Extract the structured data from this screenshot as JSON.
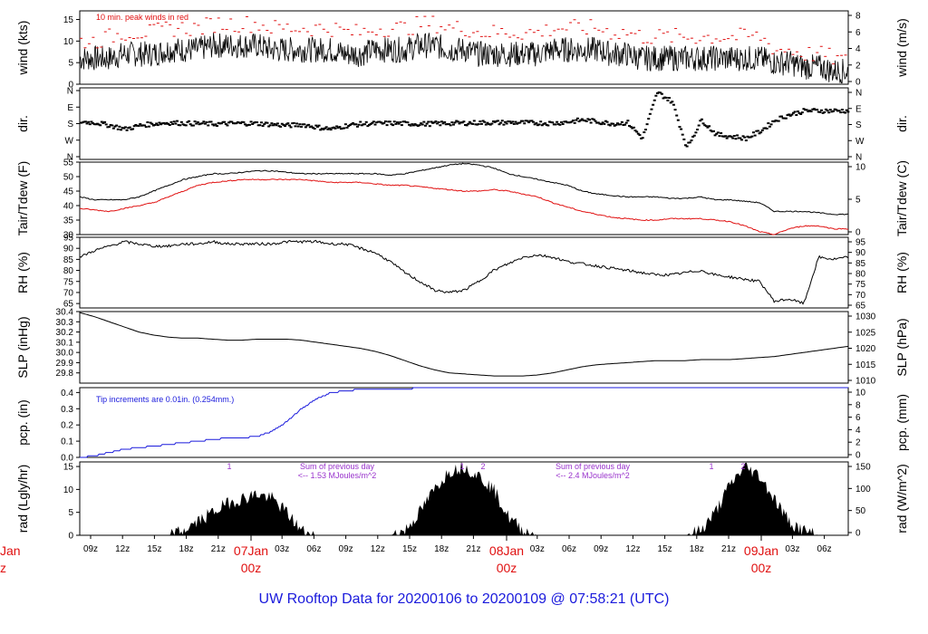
{
  "figure_title": "UW Rooftop Data for 20200106  to  20200109 @ 07:58:21  (UTC)",
  "x_axis": {
    "ticks": [
      "09z",
      "12z",
      "15z",
      "18z",
      "21z",
      "03z",
      "06z",
      "09z",
      "12z",
      "15z",
      "18z",
      "21z",
      "03z",
      "06z",
      "09z",
      "12z",
      "15z",
      "18z",
      "21z",
      "03z",
      "06z"
    ],
    "day_labels": [
      {
        "date": "07Jan",
        "hour": "00z"
      },
      {
        "date": "08Jan",
        "hour": "00z"
      },
      {
        "date": "09Jan",
        "hour": "00z"
      }
    ],
    "clipped_left_label": {
      "date": "Jan",
      "hour": "z"
    }
  },
  "colors": {
    "black": "#000000",
    "red": "#e01010",
    "blue": "#1a1adc",
    "purple": "#9933cc",
    "axis": "#000000"
  },
  "chart_data": [
    {
      "type": "line",
      "id": "wind",
      "ylabel": "wind (kts)",
      "ylabel_right": "wind (m/s)",
      "ylim": [
        0,
        17
      ],
      "yticks": [
        "0",
        "5",
        "10",
        "15"
      ],
      "yticks_right": [
        "0",
        "2",
        "4",
        "6",
        "8"
      ],
      "annotation": "10 min. peak winds in red",
      "series": [
        {
          "name": "wind speed",
          "color": "#000000",
          "values": [
            6,
            6,
            6,
            7,
            7,
            7,
            8,
            8,
            8,
            9,
            9,
            9,
            9,
            8,
            8,
            8,
            8,
            8,
            7,
            7,
            8,
            8,
            8,
            9,
            9,
            8,
            8,
            7,
            7,
            7,
            7,
            7,
            8,
            8,
            8,
            8,
            7,
            7,
            6,
            6,
            6,
            6,
            6,
            6,
            6,
            6,
            6,
            5,
            5,
            4,
            4,
            3,
            3
          ]
        },
        {
          "name": "10 min peak",
          "color": "#e01010",
          "values": [
            10,
            10,
            11,
            12,
            12,
            12,
            13,
            13,
            13,
            14,
            14,
            14,
            14,
            13,
            13,
            13,
            13,
            13,
            12,
            12,
            13,
            13,
            13,
            14,
            14,
            13,
            13,
            12,
            12,
            12,
            12,
            12,
            13,
            13,
            13,
            13,
            12,
            12,
            11,
            11,
            11,
            11,
            11,
            11,
            11,
            11,
            11,
            8,
            8,
            7,
            7,
            6,
            5
          ]
        }
      ]
    },
    {
      "type": "scatter",
      "id": "dir",
      "ylabel": "dir.",
      "ylabel_right": "dir.",
      "yticks": [
        "N",
        "W",
        "S",
        "E",
        "N"
      ],
      "series": [
        {
          "name": "direction (deg)",
          "color": "#000000",
          "values": [
            190,
            185,
            170,
            150,
            170,
            180,
            185,
            182,
            180,
            178,
            180,
            182,
            180,
            175,
            170,
            175,
            160,
            150,
            170,
            178,
            180,
            182,
            180,
            178,
            180,
            182,
            183,
            185,
            185,
            186,
            185,
            183,
            182,
            190,
            200,
            190,
            180,
            185,
            100,
            350,
            300,
            50,
            200,
            120,
            110,
            100,
            140,
            200,
            230,
            250,
            250,
            250,
            250
          ]
        }
      ]
    },
    {
      "type": "line",
      "id": "temp",
      "ylabel": "Tair/Tdew (F)",
      "ylabel_right": "Tair/Tdew (C)",
      "ylim": [
        30,
        55
      ],
      "yticks": [
        "30",
        "35",
        "40",
        "45",
        "50",
        "55"
      ],
      "yticks_right": [
        "0",
        "5",
        "10"
      ],
      "series": [
        {
          "name": "Tair",
          "color": "#000000",
          "values": [
            43,
            42,
            42,
            42,
            43,
            45,
            47,
            49,
            50,
            51,
            51,
            51.5,
            52,
            52,
            51.5,
            51,
            51,
            51,
            51,
            51,
            51,
            50.5,
            51,
            52,
            53,
            54,
            54.5,
            54,
            53,
            51,
            50,
            49,
            48,
            47,
            45,
            44,
            43.5,
            43,
            43,
            43,
            42.5,
            42.5,
            43,
            42,
            42,
            41.5,
            41,
            38,
            38,
            38,
            37.5,
            37,
            37
          ]
        },
        {
          "name": "Tdew",
          "color": "#e01010",
          "values": [
            39,
            38.5,
            38,
            39,
            40,
            41,
            43,
            45,
            47,
            48,
            48.5,
            49,
            49,
            49,
            49,
            49,
            48.5,
            48,
            48,
            48,
            47.5,
            47,
            47,
            46.5,
            46,
            45.5,
            45,
            45,
            45.5,
            45,
            44,
            43,
            41,
            39.5,
            38,
            37,
            36,
            35.5,
            35,
            35,
            35.5,
            35.5,
            35.5,
            35,
            34.5,
            33,
            31,
            30,
            32,
            33,
            33,
            32,
            32
          ]
        }
      ]
    },
    {
      "type": "line",
      "id": "rh",
      "ylabel": "RH (%)",
      "ylabel_right": "RH (%)",
      "ylim": [
        63,
        95
      ],
      "yticks": [
        "65",
        "70",
        "75",
        "80",
        "85",
        "90",
        "95"
      ],
      "series": [
        {
          "name": "RH",
          "color": "#000000",
          "values": [
            86,
            89,
            91,
            93,
            92,
            91,
            91,
            92,
            92,
            93,
            92,
            92,
            92,
            92,
            93,
            93,
            93,
            92,
            92,
            90,
            88,
            84,
            79,
            75,
            71,
            70,
            71,
            75,
            80,
            83,
            86,
            87,
            86,
            84,
            83,
            82,
            81,
            80,
            79,
            78,
            78,
            79,
            80,
            78,
            77,
            76,
            75,
            66,
            67,
            65,
            86,
            85,
            86
          ]
        }
      ]
    },
    {
      "type": "line",
      "id": "slp",
      "ylabel": "SLP (inHg)",
      "ylabel_right": "SLP (hPa)",
      "ylim": [
        29.7,
        30.4
      ],
      "yticks": [
        "29.8",
        "29.9",
        "30.0",
        "30.1",
        "30.2",
        "30.3",
        "30.4"
      ],
      "yticks_right": [
        "1010",
        "1015",
        "1020",
        "1025",
        "1030"
      ],
      "series": [
        {
          "name": "SLP",
          "color": "#000000",
          "values": [
            30.39,
            30.35,
            30.3,
            30.25,
            30.2,
            30.17,
            30.15,
            30.14,
            30.14,
            30.13,
            30.12,
            30.12,
            30.13,
            30.13,
            30.13,
            30.12,
            30.1,
            30.08,
            30.06,
            30.04,
            30.01,
            29.97,
            29.92,
            29.87,
            29.83,
            29.8,
            29.79,
            29.78,
            29.77,
            29.77,
            29.77,
            29.78,
            29.8,
            29.83,
            29.86,
            29.88,
            29.89,
            29.9,
            29.91,
            29.92,
            29.92,
            29.92,
            29.93,
            29.93,
            29.93,
            29.94,
            29.95,
            29.96,
            29.98,
            30.0,
            30.02,
            30.04,
            30.06
          ]
        }
      ]
    },
    {
      "type": "line",
      "id": "pcp",
      "ylabel": "pcp. (in)",
      "ylabel_right": "pcp. (mm)",
      "ylim": [
        0,
        0.43
      ],
      "yticks": [
        "0.0",
        "0.1",
        "0.2",
        "0.3",
        "0.4"
      ],
      "yticks_right": [
        "0",
        "2",
        "4",
        "6",
        "8",
        "10"
      ],
      "annotation": "Tip increments are 0.01in. (0.254mm.)",
      "series": [
        {
          "name": "cumulative precipitation",
          "color": "#1a1adc",
          "values": [
            0.0,
            0.01,
            0.03,
            0.05,
            0.06,
            0.07,
            0.08,
            0.09,
            0.1,
            0.11,
            0.12,
            0.12,
            0.13,
            0.16,
            0.22,
            0.3,
            0.36,
            0.4,
            0.41,
            0.42,
            0.42,
            0.42,
            0.42,
            0.43,
            0.43,
            0.43,
            0.43,
            0.43,
            0.43,
            0.43,
            0.43,
            0.43,
            0.43,
            0.43,
            0.43,
            0.43,
            0.43,
            0.43,
            0.43,
            0.43,
            0.43,
            0.43,
            0.43,
            0.43,
            0.43,
            0.43,
            0.43,
            0.43,
            0.43,
            0.43,
            0.43,
            0.43,
            0.43
          ]
        }
      ]
    },
    {
      "type": "area",
      "id": "rad",
      "ylabel": "rad (Lgly/hr)",
      "ylabel_right": "rad (W/m^2)",
      "ylim": [
        0,
        16
      ],
      "yticks": [
        "0",
        "5",
        "10",
        "15"
      ],
      "yticks_right": [
        "0",
        "50",
        "100",
        "150"
      ],
      "annotations": [
        {
          "lines": [
            "Sum of previous day",
            "<-- 1.53 MJoules/m^2"
          ]
        },
        {
          "lines": [
            "Sum of previous day",
            "<-- 2.4 MJoules/m^2"
          ]
        }
      ],
      "peak_markers": [
        "1",
        "1",
        "2",
        "1",
        "2"
      ],
      "series": [
        {
          "name": "solar radiation",
          "color": "#000000",
          "values": [
            0,
            0,
            0,
            0,
            0,
            0,
            0,
            1,
            3,
            5,
            7,
            8,
            9,
            8,
            5,
            1,
            0,
            0,
            0,
            0,
            0,
            0,
            1,
            5,
            10,
            14,
            15,
            13,
            10,
            4,
            1,
            0,
            0,
            0,
            0,
            0,
            0,
            0,
            0,
            0,
            0,
            0,
            1,
            5,
            11,
            15,
            13,
            8,
            3,
            1,
            0,
            0,
            0
          ]
        }
      ]
    }
  ]
}
